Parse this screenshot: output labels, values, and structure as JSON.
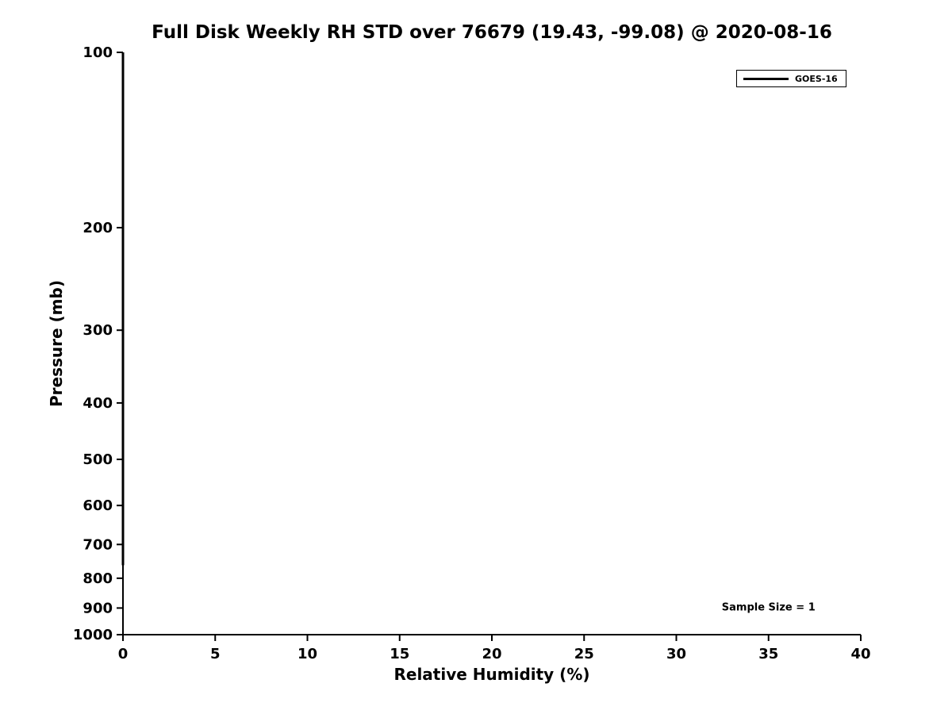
{
  "chart_data": {
    "type": "line",
    "title": "Full Disk Weekly RH STD over 76679 (19.43, -99.08) @ 2020-08-16",
    "xlabel": "Relative Humidity (%)",
    "ylabel": "Pressure (mb)",
    "xlim": [
      0,
      40
    ],
    "xticks": [
      0,
      5,
      10,
      15,
      20,
      25,
      30,
      35,
      40
    ],
    "ylim": [
      100,
      1000
    ],
    "yticks": [
      100,
      200,
      300,
      400,
      500,
      600,
      700,
      800,
      900,
      1000
    ],
    "yscale": "log",
    "y_inverted": true,
    "grid": false,
    "background": "#ffffff",
    "axis_color": "#000000",
    "legend": {
      "position": "upper-right",
      "entries": [
        {
          "label": "GOES-16",
          "color": "#000000"
        }
      ]
    },
    "series": [
      {
        "name": "GOES-16",
        "color": "#000000",
        "x": [
          0,
          0,
          0,
          0,
          0,
          0,
          0,
          0
        ],
        "pressure": [
          100,
          200,
          300,
          400,
          500,
          600,
          700,
          760
        ]
      }
    ],
    "annotations": [
      {
        "text": "Sample Size = 1",
        "x": 35,
        "pressure": 900
      }
    ]
  }
}
